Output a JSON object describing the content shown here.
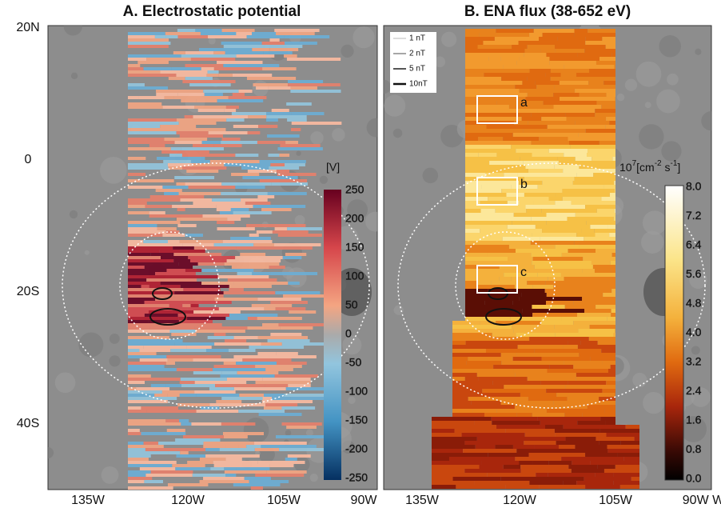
{
  "panels": [
    {
      "title": "A. Electrostatic potential",
      "x_labels": [
        "135W",
        "120W",
        "105W",
        "90W"
      ],
      "colorbar": {
        "unit": "[V]",
        "labels": [
          "250",
          "200",
          "150",
          "100",
          "50",
          "0",
          "-50",
          "-100",
          "-150",
          "-200",
          "-250"
        ]
      }
    },
    {
      "title": "B. ENA flux (38-652 eV)",
      "x_labels": [
        "135W",
        "120W",
        "105W",
        "90W W"
      ],
      "colorbar": {
        "unit_parts": [
          "10",
          "7",
          "[cm",
          "-2",
          " s",
          "-1",
          "]"
        ],
        "labels": [
          "8.0",
          "7.2",
          "6.4",
          "5.6",
          "4.8",
          "4.0",
          "3.2",
          "2.4",
          "1.6",
          "0.8",
          "0.0"
        ]
      },
      "legend": [
        "1 nT",
        "2 nT",
        "5 nT",
        "10nT"
      ],
      "boxes": [
        "a",
        "b",
        "c"
      ]
    }
  ],
  "y_labels": [
    "20N",
    "0",
    "20S",
    "40S"
  ]
}
